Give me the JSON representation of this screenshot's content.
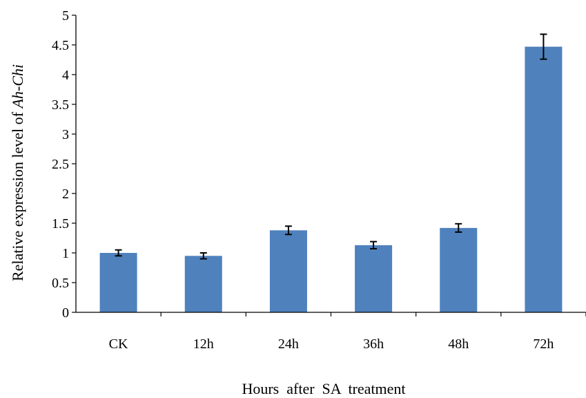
{
  "chart_data": {
    "type": "bar",
    "title": "",
    "xlabel": "Hours  after  SA  treatment",
    "ylabel_prefix": "Relative expression level of ",
    "ylabel_gene": "Ah-Chi",
    "categories": [
      "CK",
      "12h",
      "24h",
      "36h",
      "48h",
      "72h"
    ],
    "values": [
      1.0,
      0.95,
      1.38,
      1.13,
      1.42,
      4.47
    ],
    "errors": [
      0.05,
      0.05,
      0.07,
      0.06,
      0.07,
      0.21
    ],
    "ylim": [
      0,
      5
    ],
    "yticks": [
      0,
      0.5,
      1,
      1.5,
      2,
      2.5,
      3,
      3.5,
      4,
      4.5,
      5
    ],
    "ytick_labels": [
      "0",
      "0.5",
      "1",
      "1.5",
      "2",
      "2.5",
      "3",
      "3.5",
      "4",
      "4.5",
      "5"
    ],
    "bar_color": "#4f81bd",
    "grid": false,
    "legend": "none"
  }
}
